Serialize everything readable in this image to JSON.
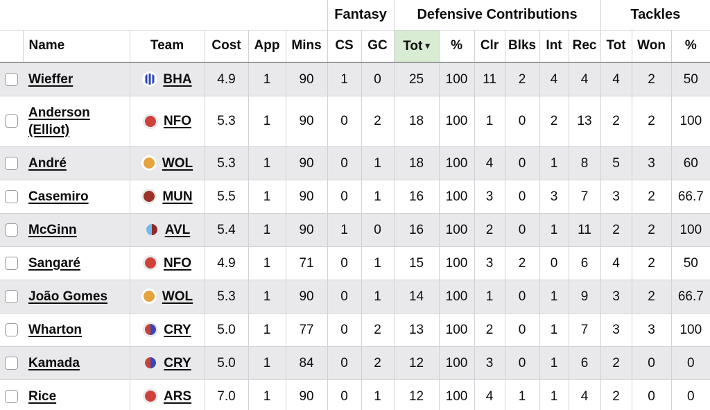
{
  "table": {
    "group_headers": [
      {
        "label": "",
        "span": 6
      },
      {
        "label": "Fantasy",
        "span": 2
      },
      {
        "label": "Defensive Contributions",
        "span": 6
      },
      {
        "label": "Tackles",
        "span": 3
      }
    ],
    "columns": [
      "",
      "Name",
      "Team",
      "Cost",
      "App",
      "Mins",
      "CS",
      "GC",
      "Tot",
      "%",
      "Clr",
      "Blks",
      "Int",
      "Rec",
      "Tot",
      "Won",
      "%"
    ],
    "sort": {
      "column_index": 8,
      "column_label": "Tot",
      "direction": "desc",
      "indicator": "▾",
      "highlight_color": "#d7ecd2"
    },
    "rows": [
      {
        "name": "Wieffer",
        "team": "BHA",
        "stats": [
          "4.9",
          "1",
          "90",
          "1",
          "0",
          "25",
          "100",
          "11",
          "2",
          "4",
          "4",
          "4",
          "2",
          "50"
        ]
      },
      {
        "name": "Anderson (Elliot)",
        "team": "NFO",
        "stats": [
          "5.3",
          "1",
          "90",
          "0",
          "2",
          "18",
          "100",
          "1",
          "0",
          "2",
          "13",
          "2",
          "2",
          "100"
        ]
      },
      {
        "name": "André",
        "team": "WOL",
        "stats": [
          "5.3",
          "1",
          "90",
          "0",
          "1",
          "18",
          "100",
          "4",
          "0",
          "1",
          "8",
          "5",
          "3",
          "60"
        ]
      },
      {
        "name": "Casemiro",
        "team": "MUN",
        "stats": [
          "5.5",
          "1",
          "90",
          "0",
          "1",
          "16",
          "100",
          "3",
          "0",
          "3",
          "7",
          "3",
          "2",
          "66.7"
        ]
      },
      {
        "name": "McGinn",
        "team": "AVL",
        "stats": [
          "5.4",
          "1",
          "90",
          "1",
          "0",
          "16",
          "100",
          "2",
          "0",
          "1",
          "11",
          "2",
          "2",
          "100"
        ]
      },
      {
        "name": "Sangaré",
        "team": "NFO",
        "stats": [
          "4.9",
          "1",
          "71",
          "0",
          "1",
          "15",
          "100",
          "3",
          "2",
          "0",
          "6",
          "4",
          "2",
          "50"
        ]
      },
      {
        "name": "João Gomes",
        "team": "WOL",
        "stats": [
          "5.3",
          "1",
          "90",
          "0",
          "1",
          "14",
          "100",
          "1",
          "0",
          "1",
          "9",
          "3",
          "2",
          "66.7"
        ]
      },
      {
        "name": "Wharton",
        "team": "CRY",
        "stats": [
          "5.0",
          "1",
          "77",
          "0",
          "2",
          "13",
          "100",
          "2",
          "0",
          "1",
          "7",
          "3",
          "3",
          "100"
        ]
      },
      {
        "name": "Kamada",
        "team": "CRY",
        "stats": [
          "5.0",
          "1",
          "84",
          "0",
          "2",
          "12",
          "100",
          "3",
          "0",
          "1",
          "6",
          "2",
          "0",
          "0"
        ]
      },
      {
        "name": "Rice",
        "team": "ARS",
        "stats": [
          "7.0",
          "1",
          "90",
          "0",
          "1",
          "12",
          "100",
          "4",
          "1",
          "1",
          "4",
          "2",
          "0",
          "0"
        ]
      }
    ]
  },
  "teams": {
    "BHA": {
      "style": "stripes",
      "colors": [
        "#ffffff",
        "#2746b6"
      ],
      "ring": "#ffffff"
    },
    "NFO": {
      "style": "solid",
      "colors": [
        "#cf423c"
      ],
      "ring": "#e9e9e9"
    },
    "WOL": {
      "style": "solid",
      "colors": [
        "#e6a33d"
      ],
      "ring": "#ffffff"
    },
    "MUN": {
      "style": "solid",
      "colors": [
        "#9c3227"
      ],
      "ring": "#e9e9e9"
    },
    "AVL": {
      "style": "halves",
      "colors": [
        "#72b8e9",
        "#8c2c2c"
      ],
      "ring": "#e9e9e9"
    },
    "CRY": {
      "style": "halves",
      "colors": [
        "#c8423a",
        "#3947b3"
      ],
      "ring": "#e9e9e9"
    },
    "ARS": {
      "style": "solid",
      "colors": [
        "#cf423c"
      ],
      "ring": "#e9e9e9"
    }
  },
  "colors": {
    "row_stripe": "#e9e9eb",
    "grid_line": "#d2d2d4",
    "header_divider": "#9c9ca0",
    "sorted_header_bg": "#d7ecd2",
    "text": "#0c0c0d"
  }
}
